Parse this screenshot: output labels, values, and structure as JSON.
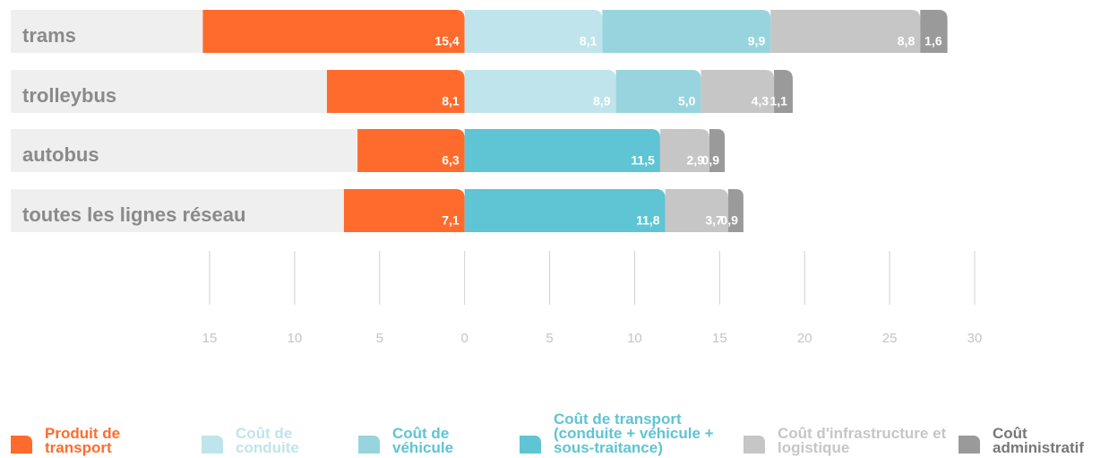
{
  "chart_data": {
    "type": "diverging_stacked_bar",
    "categories": [
      "trams",
      "trolleybus",
      "autobus",
      "toutes les lignes réseau"
    ],
    "series": [
      {
        "name": "Produit de transport",
        "color": "#ff6b2c",
        "values": [
          -15.4,
          -8.1,
          -6.3,
          -7.1
        ],
        "value_labels": [
          "15,4",
          "8,1",
          "6,3",
          "7,1"
        ]
      },
      {
        "name": "Coût de conduite",
        "color": "#c0e4eb",
        "values": [
          8.1,
          8.9,
          null,
          null
        ],
        "value_labels": [
          "8,1",
          "8,9",
          null,
          null
        ]
      },
      {
        "name": "Coût de véhicule",
        "color": "#98d4de",
        "values": [
          9.9,
          5.0,
          null,
          null
        ],
        "value_labels": [
          "9,9",
          "5,0",
          null,
          null
        ]
      },
      {
        "name": "Coût de transport (conduite + véhicule + sous-traitance)",
        "color": "#5fc4d3",
        "values": [
          null,
          null,
          11.5,
          11.8
        ],
        "value_labels": [
          null,
          null,
          "11,5",
          "11,8"
        ]
      },
      {
        "name": "Coût d'infrastructure et logistique",
        "color": "#c6c6c6",
        "values": [
          8.8,
          4.3,
          2.9,
          3.7
        ],
        "value_labels": [
          "8,8",
          "4,3",
          "2,9",
          "3,7"
        ]
      },
      {
        "name": "Coût administratif",
        "color": "#9a9a9a",
        "values": [
          1.6,
          1.1,
          0.9,
          0.9
        ],
        "value_labels": [
          "1,6",
          "1,1",
          "0,9",
          "0,9"
        ]
      }
    ],
    "xlim": [
      -15,
      30
    ],
    "xticks": [
      {
        "value": -15,
        "label": "15"
      },
      {
        "value": -10,
        "label": "10"
      },
      {
        "value": -5,
        "label": "5"
      },
      0,
      5,
      10,
      15,
      20,
      25,
      30
    ]
  }
}
